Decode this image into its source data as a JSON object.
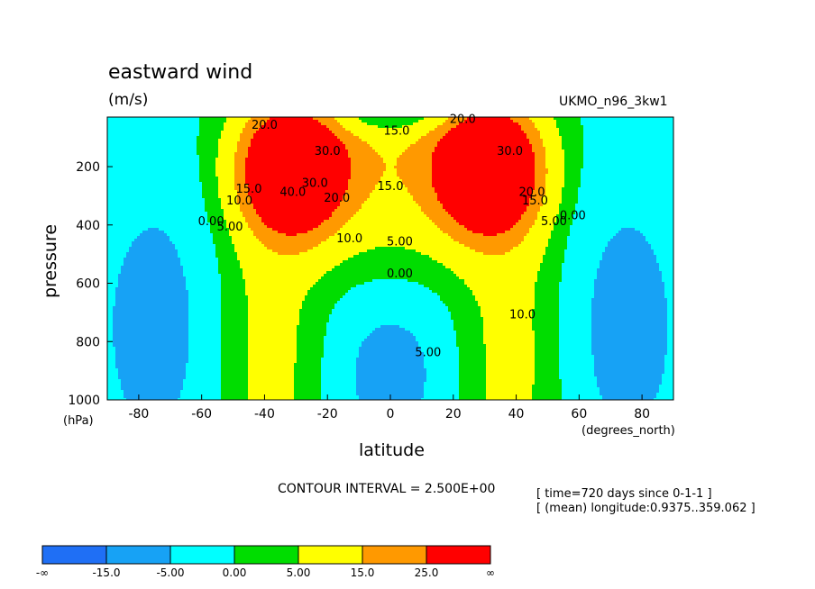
{
  "chart_data": {
    "type": "contour",
    "title": "eastward wind",
    "units": "(m/s)",
    "dataset": "UKMO_n96_3kw1",
    "xlabel": "latitude",
    "xunits": "(degrees_north)",
    "ylabel": "pressure",
    "yunits": "(hPa)",
    "xlim": [
      -90,
      90
    ],
    "ylim": [
      1000,
      30
    ],
    "x_ticks": [
      -80,
      -60,
      -40,
      -20,
      0,
      20,
      40,
      60,
      80
    ],
    "y_ticks": [
      200,
      400,
      600,
      800,
      1000
    ],
    "contour_interval": "CONTOUR INTERVAL = 2.500E+00",
    "meta_lines": [
      "[ time=720 days since 0-1-1 ]",
      "[ (mean) longitude:0.9375..359.062 ]"
    ],
    "contour_labels": [
      {
        "text": "40.0",
        "lat": -31,
        "p": 300
      },
      {
        "text": "30.0",
        "lat": -24,
        "p": 270
      },
      {
        "text": "30.0",
        "lat": -20,
        "p": 160
      },
      {
        "text": "20.0",
        "lat": -17,
        "p": 320
      },
      {
        "text": "20.0",
        "lat": -40,
        "p": 70
      },
      {
        "text": "15.0",
        "lat": -45,
        "p": 290
      },
      {
        "text": "10.0",
        "lat": -48,
        "p": 330
      },
      {
        "text": "5.00",
        "lat": -51,
        "p": 420
      },
      {
        "text": "0.00",
        "lat": -57,
        "p": 400
      },
      {
        "text": "15.0",
        "lat": 0,
        "p": 280
      },
      {
        "text": "15.0",
        "lat": 2,
        "p": 90
      },
      {
        "text": "10.0",
        "lat": -13,
        "p": 460
      },
      {
        "text": "5.00",
        "lat": 3,
        "p": 470
      },
      {
        "text": "0.00",
        "lat": 3,
        "p": 580
      },
      {
        "text": "5.00",
        "lat": 12,
        "p": 850
      },
      {
        "text": "20.0",
        "lat": 23,
        "p": 50
      },
      {
        "text": "30.0",
        "lat": 38,
        "p": 160
      },
      {
        "text": "20.0",
        "lat": 45,
        "p": 300
      },
      {
        "text": "15.0",
        "lat": 46,
        "p": 330
      },
      {
        "text": "5.00",
        "lat": 52,
        "p": 400
      },
      {
        "text": "0.00",
        "lat": 58,
        "p": 380
      },
      {
        "text": "10.0",
        "lat": 42,
        "p": 720
      }
    ],
    "colorbar": {
      "colors": [
        "#1f6ff5",
        "#17a2f5",
        "#00ffff",
        "#00dd00",
        "#ffff00",
        "#ff9900",
        "#ff0000"
      ],
      "labels": [
        "-∞",
        "-15.0",
        "-5.00",
        "0.00",
        "5.00",
        "15.0",
        "25.0",
        "∞"
      ]
    }
  }
}
